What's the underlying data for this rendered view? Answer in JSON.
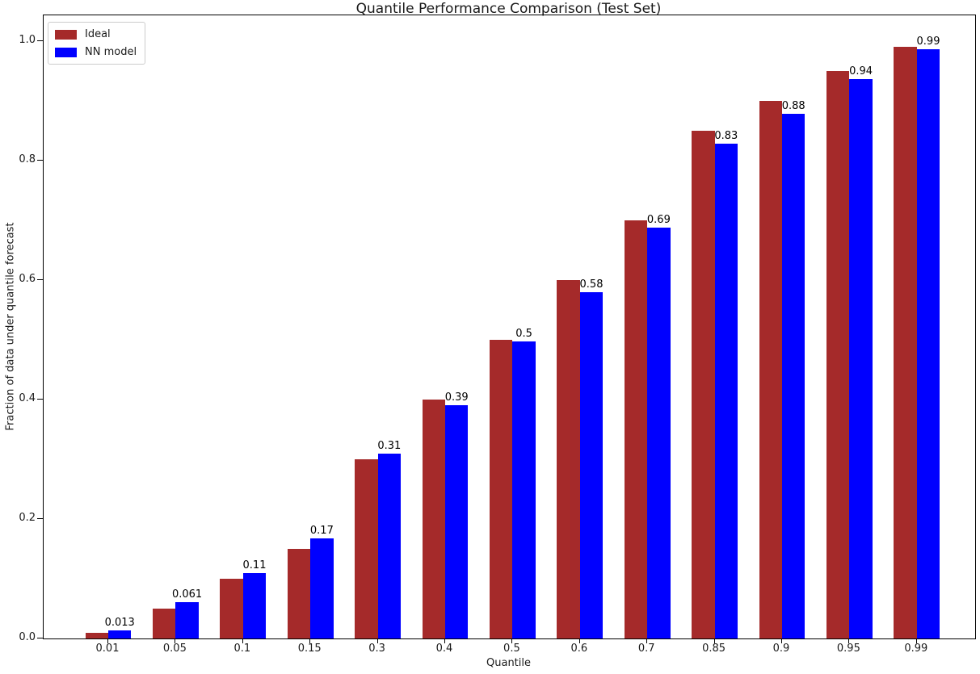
{
  "chart_data": {
    "type": "bar",
    "title": "Quantile Performance Comparison (Test Set)",
    "xlabel": "Quantile",
    "ylabel": "Fraction of data under quantile forecast",
    "categories": [
      "0.01",
      "0.05",
      "0.1",
      "0.15",
      "0.3",
      "0.4",
      "0.5",
      "0.6",
      "0.7",
      "0.85",
      "0.9",
      "0.95",
      "0.99"
    ],
    "series": [
      {
        "name": "Ideal",
        "color": "#a52a2a",
        "values": [
          0.01,
          0.05,
          0.1,
          0.15,
          0.3,
          0.4,
          0.5,
          0.6,
          0.7,
          0.85,
          0.9,
          0.95,
          0.99
        ]
      },
      {
        "name": "NN model",
        "color": "#0000ff",
        "values": [
          0.013,
          0.061,
          0.11,
          0.168,
          0.31,
          0.39,
          0.497,
          0.58,
          0.688,
          0.828,
          0.879,
          0.937,
          0.987
        ],
        "labels": [
          "0.013",
          "0.061",
          "0.11",
          "0.17",
          "0.31",
          "0.39",
          "0.5",
          "0.58",
          "0.69",
          "0.83",
          "0.88",
          "0.94",
          "0.99"
        ]
      }
    ],
    "yticks": [
      "0.0",
      "0.2",
      "0.4",
      "0.6",
      "0.8",
      "1.0"
    ],
    "ylim": [
      0,
      1.043
    ],
    "legend_position": "upper-left",
    "grid": false,
    "bar_value_labels_on": "NN model"
  }
}
